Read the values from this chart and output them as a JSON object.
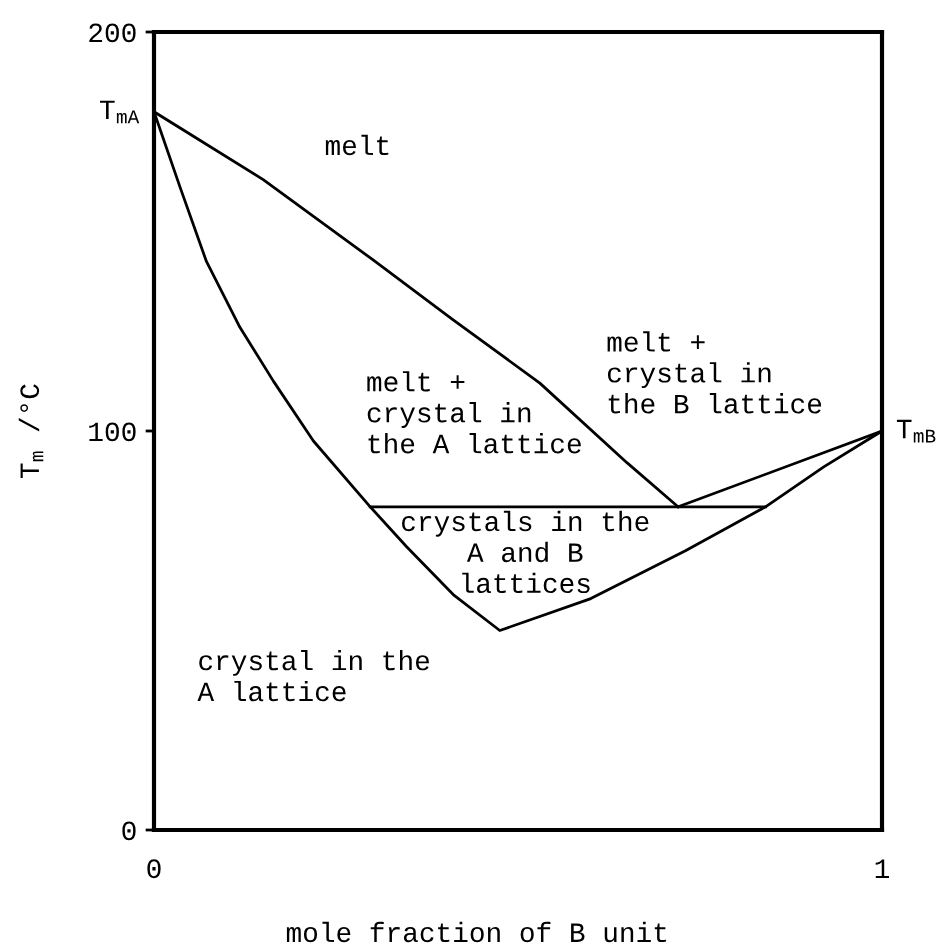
{
  "chart_data": {
    "type": "line",
    "xlabel": "mole fraction of B unit",
    "ylabel": "T$_{m}$ /°C",
    "xlim": [
      0,
      1
    ],
    "ylim": [
      0,
      200
    ],
    "xticks": [
      0,
      1
    ],
    "yticks": [
      0,
      100,
      200
    ],
    "grid": false,
    "marker": "none",
    "line_style": "solid",
    "series": [
      {
        "color": "#000000",
        "x": [
          0,
          0.15,
          0.3,
          0.41,
          0.53,
          0.65,
          0.72
        ],
        "values": [
          180,
          163,
          143,
          128,
          112,
          92,
          81
        ]
      },
      {
        "color": "#000000",
        "x": [
          0,
          0.036,
          0.072,
          0.118,
          0.164,
          0.219,
          0.297,
          0.347,
          0.411,
          0.475,
          0.6,
          0.73,
          0.84,
          0.92,
          1
        ],
        "values": [
          180,
          161,
          142.5,
          126,
          112.5,
          97.5,
          81,
          71,
          59,
          50,
          58,
          70,
          81,
          91,
          100
        ]
      },
      {
        "color": "#000000",
        "x": [
          0.72,
          1
        ],
        "values": [
          81,
          100
        ]
      },
      {
        "color": "#000000",
        "x": [
          0.297,
          0.84
        ],
        "values": [
          81,
          81
        ]
      }
    ],
    "annotations": [
      "melt",
      "melt +\ncrystal in\nthe A lattice",
      "melt +\ncrystal in\nthe B lattice",
      "crystals in the\nA and B\nlattices",
      "crystal in the\nA lattice",
      {
        "text": "T$_{mA}$",
        "x": 0,
        "y": 180
      },
      {
        "text": "T$_{mB}$",
        "x": 1,
        "y": 100
      }
    ]
  }
}
